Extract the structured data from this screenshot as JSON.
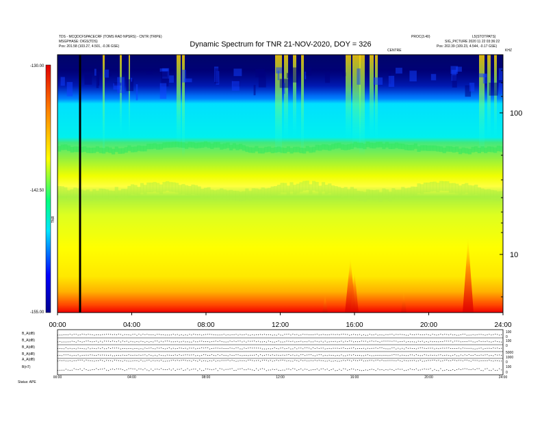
{
  "header": {
    "left_lines": [
      "TDS - MCQDCFSPACECRF (TOMS RAD NPSRS) - CNTR (TRIPE)",
      "MSGPHASE: DIGS(TDS)"
    ],
    "left_pos": "Pos:    201.58 (103.27, 4.501, -0.36 GSE)",
    "title": "Dynamic Spectrum for TNR 21-NOV-2020, DOY = 326",
    "right_top_a": "PROC(3.40)",
    "right_top_b": "L5(STOTPATS)",
    "right_sub": "SIG_PICTURE 2020 11 22 03:36:22",
    "right_pos": "Pos:    202.39 (109.23, 4.544, -0.17 GSE)",
    "right_small_a": "CENTRE",
    "right_small_b": "KHZ"
  },
  "chart_data": {
    "type": "heatmap",
    "title": "Dynamic Spectrum for TNR 21-NOV-2020, DOY = 326",
    "x_ticks": [
      "00:00",
      "04:00",
      "08:00",
      "12:00",
      "16:00",
      "20:00",
      "24:00"
    ],
    "y_ticks_right": [
      "100",
      "10"
    ],
    "y_scale": "log",
    "colorbar": {
      "ticks": [
        "-130.00",
        "-142.50",
        "-155.00"
      ],
      "label": "TNR",
      "range": [
        -155.0,
        -130.0
      ],
      "colors": [
        "#0000cc",
        "#00ccff",
        "#00ff66",
        "#ffff00",
        "#ff8800",
        "#ff0000"
      ]
    },
    "marker_time": "01:15"
  },
  "bottom_panel": {
    "row_labels": [
      "B_A(dB)",
      "B_A(dB)",
      "B_A(dB)",
      "B_A(dB)",
      "A_A(dB)",
      "B(nT)"
    ],
    "right_ticks": [
      "100",
      "0",
      "100",
      "0",
      "5000",
      "1000",
      "0",
      "100",
      "0"
    ],
    "x_ticks": [
      "00:00",
      "04:00",
      "08:00",
      "12:00",
      "16:00",
      "20:00",
      "24:00"
    ],
    "footer": "Status: APE"
  }
}
